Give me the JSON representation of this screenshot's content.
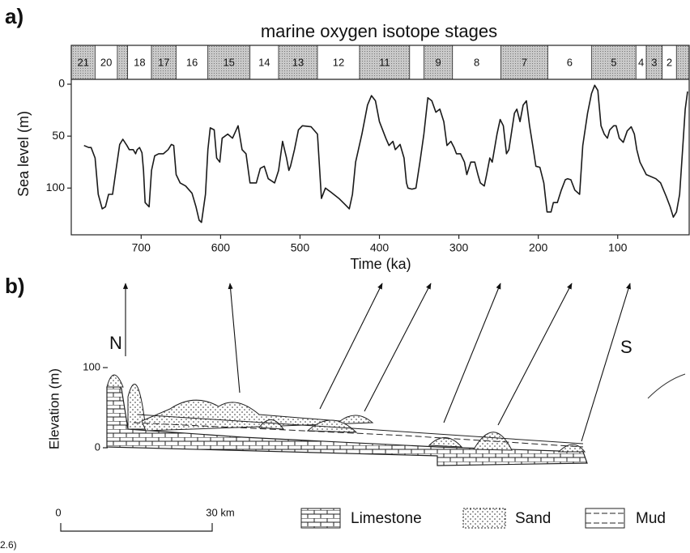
{
  "chart_data": {
    "type": "line",
    "panel_label": "a)",
    "title": "marine oxygen isotope stages",
    "x_label": "Time (ka)",
    "y_label": "Sea level (m)",
    "xlim": [
      788,
      10
    ],
    "ylim": [
      0,
      145
    ],
    "y_inverted": true,
    "xticks": [
      700,
      600,
      500,
      400,
      300,
      200,
      100
    ],
    "yticks": [
      0,
      50,
      100
    ],
    "color": "#1a1a1a",
    "stage_labels": [
      "21",
      "20",
      null,
      "18",
      "17",
      "16",
      "15",
      "14",
      "13",
      "12",
      "11",
      null,
      "9",
      "8",
      "7",
      "6",
      "5",
      "4",
      "3",
      "2",
      null
    ],
    "stage_edges": [
      788,
      758,
      730,
      717,
      687,
      656,
      616,
      563,
      527,
      478,
      425,
      362,
      344,
      308,
      247,
      188,
      133,
      77,
      64,
      44,
      26,
      10
    ],
    "stage_colors": [
      "#b5b5b5",
      "#ffffff",
      "#b5b5b5",
      "#ffffff",
      "#b5b5b5",
      "#ffffff",
      "#b5b5b5",
      "#ffffff",
      "#b5b5b5",
      "#ffffff",
      "#b5b5b5",
      "#ffffff",
      "#b5b5b5",
      "#ffffff",
      "#b5b5b5",
      "#ffffff",
      "#b5b5b5",
      "#ffffff",
      "#b5b5b5",
      "#ffffff",
      "#b5b5b5"
    ],
    "x": [
      772,
      766,
      763,
      758,
      754,
      749,
      745,
      741,
      736,
      731,
      727,
      723,
      718,
      715,
      710,
      707,
      705,
      702,
      699,
      697,
      695,
      690,
      687,
      683,
      678,
      672,
      666,
      662,
      659,
      656,
      651,
      644,
      636,
      631,
      627,
      624,
      619,
      616,
      613,
      608,
      605,
      601,
      598,
      591,
      585,
      578,
      573,
      568,
      563,
      555,
      550,
      545,
      540,
      532,
      527,
      522,
      517,
      514,
      512,
      507,
      502,
      497,
      486,
      478,
      473,
      468,
      461,
      451,
      443,
      438,
      434,
      430,
      422,
      415,
      410,
      405,
      400,
      392,
      388,
      383,
      380,
      374,
      369,
      366,
      364,
      359,
      354,
      349,
      344,
      339,
      334,
      329,
      324,
      319,
      315,
      310,
      306,
      303,
      298,
      293,
      290,
      285,
      280,
      276,
      273,
      268,
      265,
      261,
      258,
      252,
      248,
      244,
      240,
      237,
      234,
      230,
      227,
      223,
      219,
      215,
      211,
      207,
      203,
      198,
      193,
      189,
      184,
      181,
      176,
      171,
      166,
      163,
      159,
      154,
      148,
      144,
      138,
      133,
      129,
      125,
      121,
      117,
      113,
      110,
      105,
      102,
      98,
      93,
      88,
      83,
      79,
      76,
      72,
      64,
      52,
      46,
      39,
      34,
      30,
      26,
      22,
      18,
      15,
      12
    ],
    "values": [
      59,
      61,
      61,
      71,
      106,
      120,
      118,
      106,
      106,
      79,
      58,
      53,
      59,
      63,
      63,
      67,
      63,
      61,
      66,
      83,
      114,
      118,
      83,
      69,
      67,
      67,
      63,
      58,
      59,
      87,
      95,
      98,
      105,
      118,
      131,
      133,
      106,
      63,
      42,
      44,
      71,
      75,
      52,
      48,
      52,
      40,
      63,
      67,
      95,
      95,
      81,
      79,
      91,
      95,
      83,
      55,
      71,
      83,
      79,
      63,
      44,
      40,
      41,
      48,
      110,
      100,
      104,
      110,
      116,
      120,
      106,
      75,
      48,
      20,
      11,
      16,
      36,
      52,
      59,
      55,
      63,
      58,
      71,
      95,
      100,
      101,
      100,
      75,
      48,
      13,
      16,
      27,
      24,
      36,
      59,
      55,
      61,
      67,
      67,
      75,
      87,
      75,
      75,
      87,
      95,
      98,
      87,
      71,
      75,
      48,
      34,
      40,
      67,
      63,
      48,
      28,
      24,
      36,
      20,
      16,
      40,
      59,
      79,
      80,
      95,
      123,
      123,
      114,
      114,
      102,
      92,
      91,
      92,
      102,
      106,
      59,
      28,
      9,
      1,
      6,
      40,
      48,
      52,
      44,
      40,
      40,
      52,
      56,
      45,
      41,
      48,
      63,
      75,
      87,
      91,
      95,
      108,
      118,
      128,
      123,
      106,
      59,
      24,
      7
    ]
  },
  "cross_section": {
    "panel_label": "b)",
    "north": "N",
    "south": "S",
    "y_label": "Elevation (m)",
    "y_tick_labels": [
      100,
      0
    ],
    "scale_labels": [
      "0",
      "30 km"
    ],
    "legend": [
      "Limestone",
      "Sand",
      "Mud"
    ],
    "caption": "2.6)"
  }
}
